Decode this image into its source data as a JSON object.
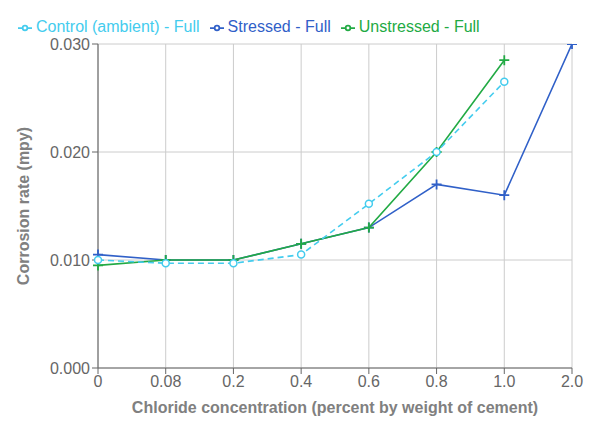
{
  "chart_data": {
    "type": "line",
    "categories": [
      "0",
      "0.08",
      "0.2",
      "0.4",
      "0.6",
      "0.8",
      "1.0",
      "2.0"
    ],
    "series": [
      {
        "name": "Stressed - Full",
        "color": "#3060c8",
        "marker": "plus",
        "line_style": "solid",
        "values": [
          0.0105,
          0.01,
          0.01,
          0.0115,
          0.013,
          0.017,
          0.016,
          0.03
        ]
      },
      {
        "name": "Unstressed - Full",
        "color": "#22aa44",
        "marker": "plus",
        "line_style": "solid",
        "values": [
          0.0095,
          0.01,
          0.01,
          0.0115,
          0.013,
          0.02,
          0.0285,
          null
        ]
      },
      {
        "name": "Control (ambient) - Full",
        "color": "#44ccee",
        "marker": "circle",
        "line_style": "dashed",
        "values": [
          0.01,
          0.0097,
          0.0097,
          0.0105,
          0.0152,
          0.02,
          0.0265,
          null
        ]
      }
    ],
    "xlabel": "Chloride concentration (percent by weight of cement)",
    "ylabel": "Corrosion rate (mpy)",
    "ylim": [
      0,
      0.03
    ],
    "yticks": [
      {
        "value": 0.0,
        "label": "0.000"
      },
      {
        "value": 0.01,
        "label": "0.010"
      },
      {
        "value": 0.02,
        "label": "0.020"
      },
      {
        "value": 0.03,
        "label": "0.030"
      }
    ],
    "grid": true,
    "legend": "upper left"
  }
}
